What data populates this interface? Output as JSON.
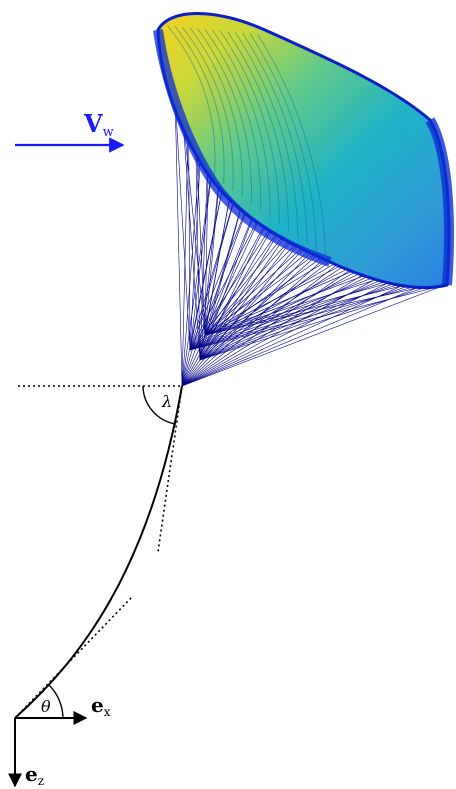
{
  "labels": {
    "wind_vector": "V",
    "wind_sub": "w",
    "ex": "e",
    "ex_sub": "x",
    "ez": "e",
    "ez_sub": "z",
    "theta": "θ",
    "lambda": "λ"
  },
  "colors": {
    "wind": "#1a1aff",
    "lines": "#00008b",
    "tether": "#000000",
    "kite_dark": "#0b2bd8",
    "kite_mid": "#1fb6c8",
    "kite_light": "#a7d94a",
    "kite_hot": "#f1d326"
  }
}
